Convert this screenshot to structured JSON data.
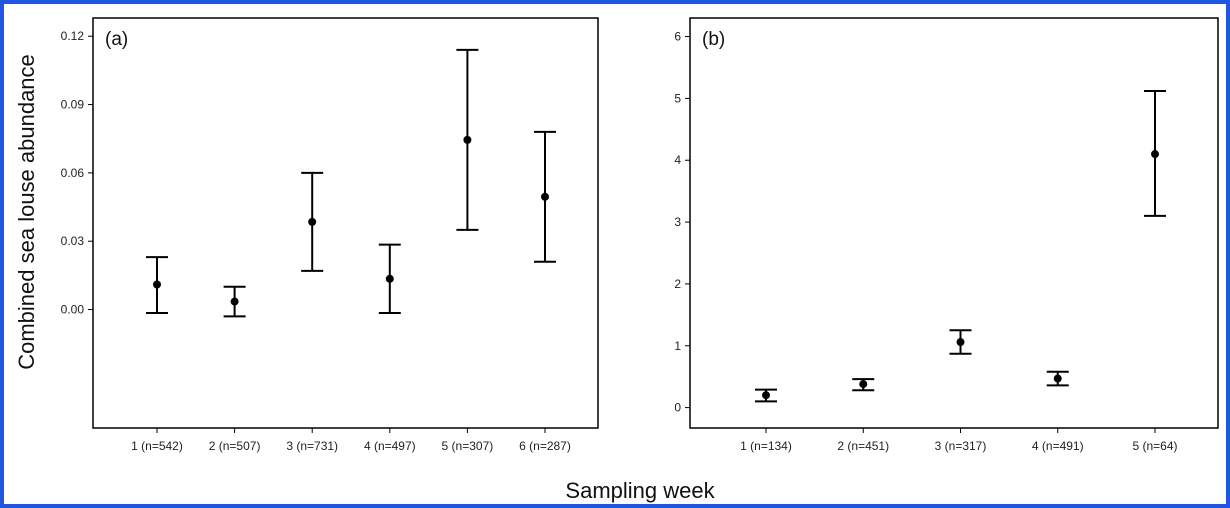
{
  "frame_color": "#1f57e0",
  "ylabel": "Combined sea louse abundance",
  "xlabel": "Sampling week",
  "chart_data": [
    {
      "type": "scatter",
      "panel_label": "(a)",
      "categories": [
        "1 (n=542)",
        "2 (n=507)",
        "3 (n=731)",
        "4 (n=497)",
        "5 (n=307)",
        "6 (n=287)"
      ],
      "values": [
        0.011,
        0.0035,
        0.0385,
        0.0135,
        0.0745,
        0.0495
      ],
      "lower": [
        -0.0015,
        -0.003,
        0.017,
        -0.0015,
        0.035,
        0.021
      ],
      "upper": [
        0.023,
        0.01,
        0.06,
        0.0285,
        0.114,
        0.078
      ],
      "ylim": [
        -0.052,
        0.128
      ],
      "yticks": [
        0.0,
        0.03,
        0.06,
        0.09,
        0.12
      ],
      "ytick_labels": [
        "0.00",
        "0.03",
        "0.06",
        "0.09",
        "0.12"
      ],
      "grid": false,
      "error_bars": true
    },
    {
      "type": "scatter",
      "panel_label": "(b)",
      "categories": [
        "1 (n=134)",
        "2 (n=451)",
        "3 (n=317)",
        "4 (n=491)",
        "5 (n=64)"
      ],
      "values": [
        0.2,
        0.38,
        1.06,
        0.47,
        4.1
      ],
      "lower": [
        0.1,
        0.28,
        0.87,
        0.36,
        3.1
      ],
      "upper": [
        0.29,
        0.46,
        1.25,
        0.58,
        5.12
      ],
      "ylim": [
        -0.33,
        6.3
      ],
      "yticks": [
        0,
        1,
        2,
        3,
        4,
        5,
        6
      ],
      "ytick_labels": [
        "0",
        "1",
        "2",
        "3",
        "4",
        "5",
        "6"
      ],
      "grid": false,
      "error_bars": true
    }
  ]
}
